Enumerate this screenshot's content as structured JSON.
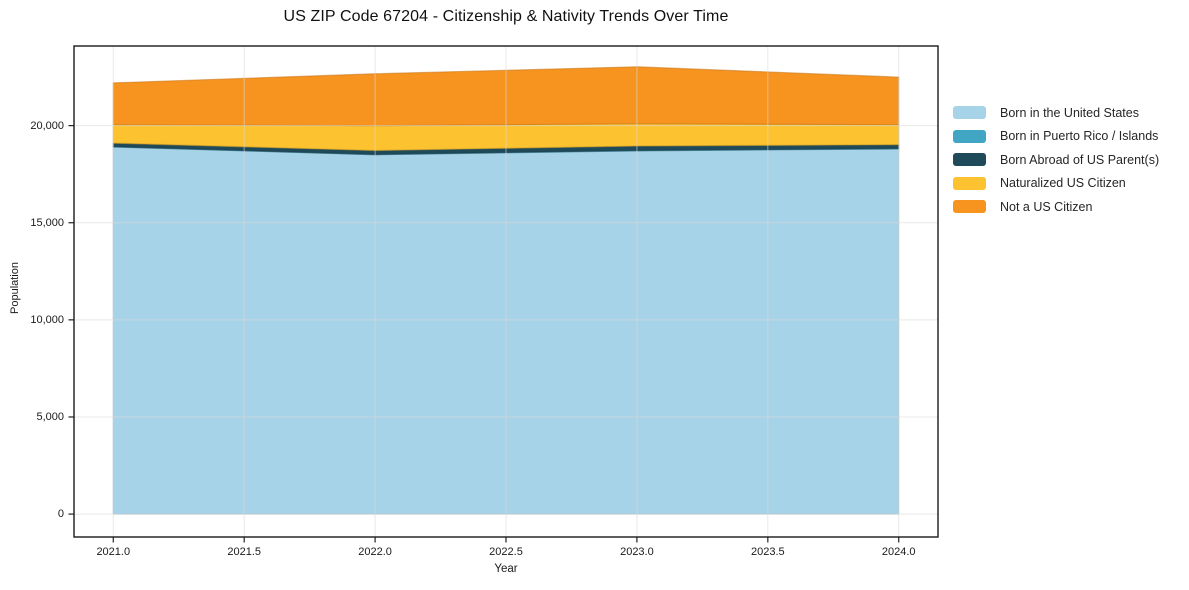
{
  "chart_data": {
    "type": "area",
    "stacked": true,
    "title": "US ZIP Code 67204 - Citizenship & Nativity Trends Over Time",
    "xlabel": "Year",
    "ylabel": "Population",
    "x": [
      2021,
      2022,
      2023,
      2024
    ],
    "series": [
      {
        "name": "Born in the United States",
        "color": "#a7d3e8",
        "values": [
          18900,
          18500,
          18700,
          18800
        ]
      },
      {
        "name": "Born in Puerto Rico / Islands",
        "color": "#41a6c4",
        "values": [
          15,
          15,
          20,
          20
        ]
      },
      {
        "name": "Born Abroad of US Parent(s)",
        "color": "#1f4a5a",
        "values": [
          185,
          205,
          230,
          200
        ]
      },
      {
        "name": "Naturalized US Citizen",
        "color": "#fcc22f",
        "values": [
          950,
          1280,
          1150,
          1030
        ]
      },
      {
        "name": "Not a US Citizen",
        "color": "#f7941f",
        "values": [
          2150,
          2670,
          2930,
          2450
        ]
      }
    ],
    "stack_totals": [
      22200,
      22670,
      23030,
      22500
    ],
    "x_ticks": [
      2021.0,
      2021.5,
      2022.0,
      2022.5,
      2023.0,
      2023.5,
      2024.0
    ],
    "x_tick_labels": [
      "2021.0",
      "2021.5",
      "2022.0",
      "2022.5",
      "2023.0",
      "2023.5",
      "2024.0"
    ],
    "y_ticks": [
      0,
      5000,
      10000,
      15000,
      20000
    ],
    "y_tick_labels": [
      "0",
      "5,000",
      "10,000",
      "15,000",
      "20,000"
    ],
    "xlim": [
      2020.85,
      2024.15
    ],
    "ylim": [
      -1180,
      24100
    ],
    "grid": true,
    "legend_position": "right-outside",
    "colors": {
      "frame": "#1a1a1a",
      "grid": "#d8d8d8",
      "tick": "#222222",
      "background": "#ffffff"
    }
  }
}
